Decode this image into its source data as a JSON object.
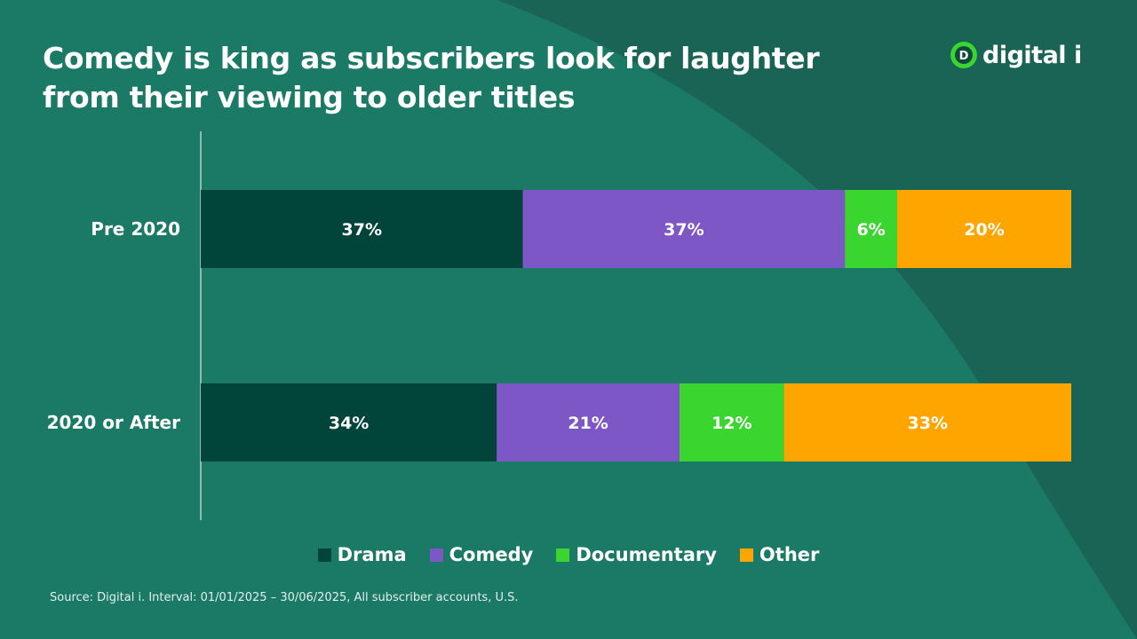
{
  "title": "Comedy is king as subscribers look for laughter from their viewing to older titles",
  "logo": {
    "text": "digital i",
    "mark_letter": "D",
    "icon": "digital-i-logo-icon"
  },
  "colors": {
    "background": "#196454",
    "background_highlight": "#1A7A66",
    "drama": "#00443A",
    "comedy": "#7E57C6",
    "documentary": "#3AD52F",
    "other": "#FFA500",
    "axis": "#FFFFFF"
  },
  "chart_data": {
    "type": "bar",
    "orientation": "horizontal",
    "stacked": true,
    "categories": [
      "Pre 2020",
      "2020 or After"
    ],
    "series": [
      {
        "name": "Drama",
        "color": "#00443A",
        "values": [
          37,
          34
        ],
        "labels": [
          "37%",
          "34%"
        ]
      },
      {
        "name": "Comedy",
        "color": "#7E57C6",
        "values": [
          37,
          21
        ],
        "labels": [
          "37%",
          "21%"
        ]
      },
      {
        "name": "Documentary",
        "color": "#3AD52F",
        "values": [
          6,
          12
        ],
        "labels": [
          "6%",
          "12%"
        ]
      },
      {
        "name": "Other",
        "color": "#FFA500",
        "values": [
          20,
          33
        ],
        "labels": [
          "20%",
          "33%"
        ]
      }
    ],
    "xlim": [
      0,
      100
    ],
    "unit": "%",
    "grid": false,
    "legend_position": "bottom"
  },
  "source": "Source: Digital i. Interval: 01/01/2025 – 30/06/2025, All subscriber accounts, U.S."
}
